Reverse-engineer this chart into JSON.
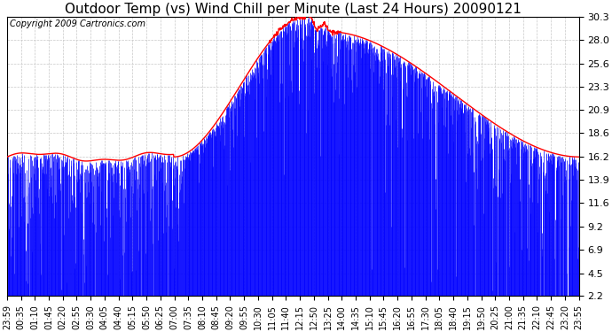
{
  "title": "Outdoor Temp (vs) Wind Chill per Minute (Last 24 Hours) 20090121",
  "copyright_text": "Copyright 2009 Cartronics.com",
  "yticks": [
    2.2,
    4.5,
    6.9,
    9.2,
    11.6,
    13.9,
    16.2,
    18.6,
    20.9,
    23.3,
    25.6,
    28.0,
    30.3
  ],
  "xtick_labels": [
    "23:59",
    "00:35",
    "01:10",
    "01:45",
    "02:20",
    "02:55",
    "03:30",
    "04:05",
    "04:40",
    "05:15",
    "05:50",
    "06:25",
    "07:00",
    "07:35",
    "08:10",
    "08:45",
    "09:20",
    "09:55",
    "10:30",
    "11:05",
    "11:40",
    "12:15",
    "12:50",
    "13:25",
    "14:00",
    "14:35",
    "15:10",
    "15:45",
    "16:20",
    "16:55",
    "17:30",
    "18:05",
    "18:40",
    "19:15",
    "19:50",
    "20:25",
    "21:00",
    "21:35",
    "22:10",
    "22:45",
    "23:20",
    "23:55"
  ],
  "ymin": 2.2,
  "ymax": 30.3,
  "blue_bar_color": "#0000ff",
  "red_line_color": "#ff0000",
  "background_color": "#ffffff",
  "grid_color": "#c8c8c8",
  "title_fontsize": 11,
  "copyright_fontsize": 7,
  "tick_fontsize": 7,
  "ytick_fontsize": 8
}
